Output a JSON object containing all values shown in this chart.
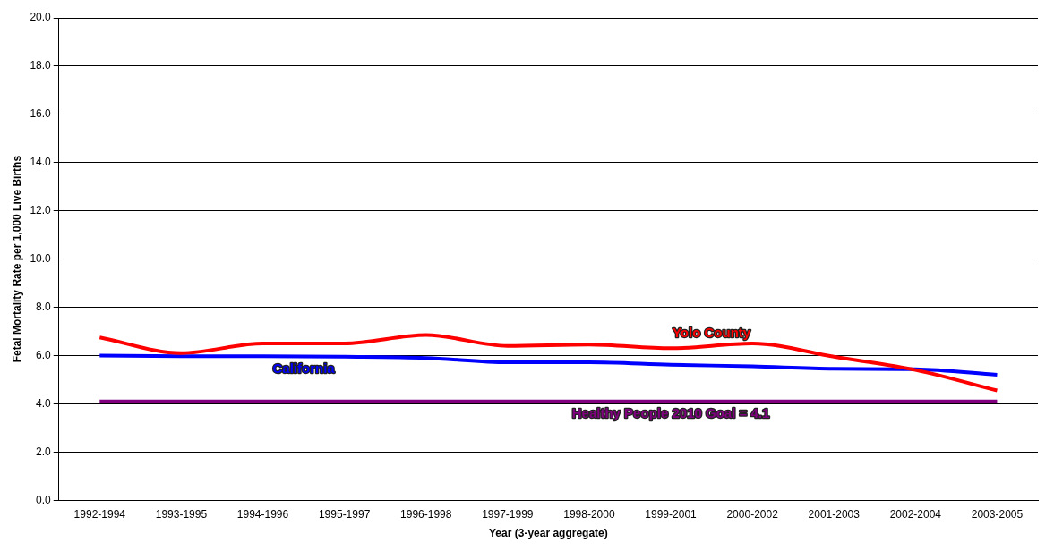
{
  "chart_data": {
    "type": "line",
    "xlabel": "Year (3-year aggregate)",
    "ylabel": "Fetal Mortality Rate per 1,000 Live Births",
    "categories": [
      "1992-1994",
      "1993-1995",
      "1994-1996",
      "1995-1997",
      "1996-1998",
      "1997-1999",
      "1998-2000",
      "1999-2001",
      "2000-2002",
      "2001-2003",
      "2002-2004",
      "2003-2005"
    ],
    "series": [
      {
        "name": "Yolo County",
        "color": "#ff0000",
        "values": [
          6.75,
          6.1,
          6.5,
          6.5,
          6.85,
          6.4,
          6.45,
          6.3,
          6.5,
          5.95,
          5.4,
          4.55
        ]
      },
      {
        "name": "California",
        "color": "#0000ff",
        "values": [
          6.0,
          5.97,
          5.97,
          5.95,
          5.9,
          5.72,
          5.72,
          5.62,
          5.55,
          5.45,
          5.43,
          5.2
        ]
      }
    ],
    "ref_lines": [
      {
        "axis": "y",
        "value": 4.1,
        "label": "Healthy People 2010 Goal = 4.1",
        "color": "#800080"
      }
    ],
    "ylim": [
      0,
      20
    ],
    "yticks": [
      {
        "value": 0,
        "label": "0.0"
      },
      {
        "value": 2,
        "label": "2.0"
      },
      {
        "value": 4,
        "label": "4.0"
      },
      {
        "value": 6,
        "label": "6.0"
      },
      {
        "value": 8,
        "label": "8.0"
      },
      {
        "value": 10,
        "label": "10.0"
      },
      {
        "value": 12,
        "label": "12.0"
      },
      {
        "value": 14,
        "label": "14.0"
      },
      {
        "value": 16,
        "label": "16.0"
      },
      {
        "value": 18,
        "label": "18.0"
      },
      {
        "value": 20,
        "label": "20.0"
      }
    ],
    "grid": "y",
    "legend": false,
    "marker": "none",
    "line_style": "solid"
  }
}
